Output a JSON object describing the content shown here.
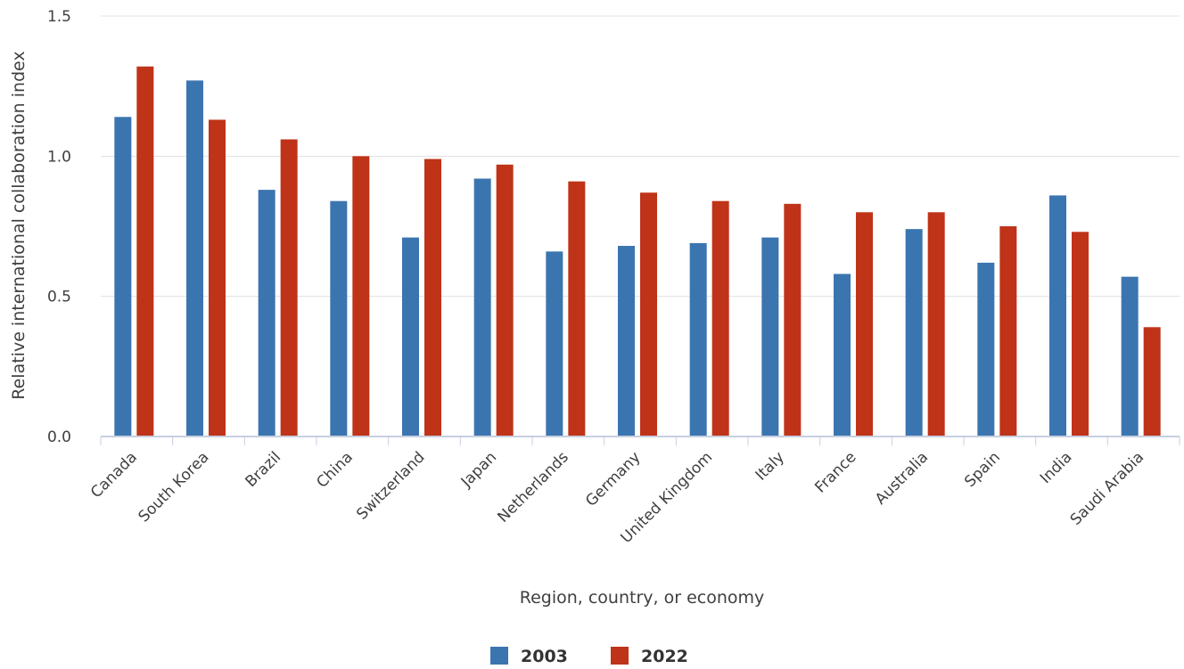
{
  "chart_data": {
    "type": "bar",
    "title": "",
    "xlabel": "Region, country, or economy",
    "ylabel": "Relative international collaboration index",
    "ylim": [
      0,
      1.5
    ],
    "yticks": [
      "0.0",
      "0.5",
      "1.0",
      "1.5"
    ],
    "grid": true,
    "legend_position": "bottom",
    "categories": [
      "Canada",
      "South Korea",
      "Brazil",
      "China",
      "Switzerland",
      "Japan",
      "Netherlands",
      "Germany",
      "United Kingdom",
      "Italy",
      "France",
      "Australia",
      "Spain",
      "India",
      "Saudi Arabia"
    ],
    "series": [
      {
        "name": "2003",
        "color": "#3b75b0",
        "values": [
          1.14,
          1.27,
          0.88,
          0.84,
          0.71,
          0.92,
          0.66,
          0.68,
          0.69,
          0.71,
          0.58,
          0.74,
          0.62,
          0.86,
          0.57
        ]
      },
      {
        "name": "2022",
        "color": "#bf3318",
        "values": [
          1.32,
          1.13,
          1.06,
          1.0,
          0.99,
          0.97,
          0.91,
          0.87,
          0.84,
          0.83,
          0.8,
          0.8,
          0.75,
          0.73,
          0.39
        ]
      }
    ]
  }
}
